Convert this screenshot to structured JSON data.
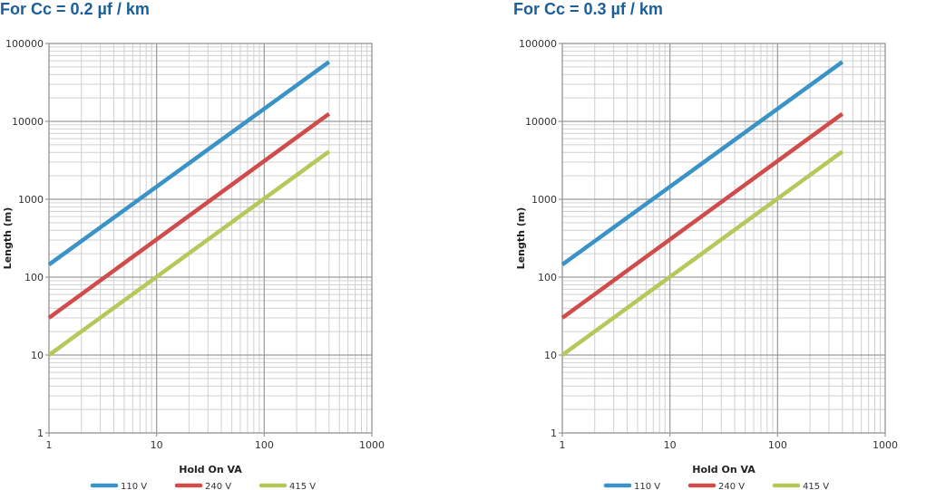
{
  "colors": {
    "title": "#1b5e9a",
    "grid_minor": "#d0d0d0",
    "grid_major": "#9a9a9a"
  },
  "chart_data": [
    {
      "type": "line",
      "title": "For Cc = 0.2 µf / km",
      "xlabel": "Hold On VA",
      "ylabel": "Length (m)",
      "xscale": "log",
      "yscale": "log",
      "xlim": [
        1,
        1000
      ],
      "ylim": [
        1,
        100000
      ],
      "xticks": [
        "1",
        "10",
        "100",
        "1000"
      ],
      "yticks": [
        "1",
        "10",
        "100",
        "1000",
        "10000",
        "100000"
      ],
      "grid": true,
      "legend_position": "bottom",
      "series": [
        {
          "name": "110 V",
          "color": "#3a93c6",
          "x": [
            1,
            400
          ],
          "y": [
            145,
            58000
          ]
        },
        {
          "name": "240 V",
          "color": "#d04c4c",
          "x": [
            1,
            400
          ],
          "y": [
            30,
            12500
          ]
        },
        {
          "name": "415 V",
          "color": "#b5c95a",
          "x": [
            1,
            400
          ],
          "y": [
            10,
            4100
          ]
        }
      ]
    },
    {
      "type": "line",
      "title": "For Cc = 0.3 µf / km",
      "xlabel": "Hold On VA",
      "ylabel": "Length (m)",
      "xscale": "log",
      "yscale": "log",
      "xlim": [
        1,
        1000
      ],
      "ylim": [
        1,
        100000
      ],
      "xticks": [
        "1",
        "10",
        "100",
        "1000"
      ],
      "yticks": [
        "1",
        "10",
        "100",
        "1000",
        "10000",
        "100000"
      ],
      "grid": true,
      "legend_position": "bottom",
      "series": [
        {
          "name": "110 V",
          "color": "#3a93c6",
          "x": [
            1,
            400
          ],
          "y": [
            145,
            58000
          ]
        },
        {
          "name": "240 V",
          "color": "#d04c4c",
          "x": [
            1,
            400
          ],
          "y": [
            30,
            12500
          ]
        },
        {
          "name": "415 V",
          "color": "#b5c95a",
          "x": [
            1,
            400
          ],
          "y": [
            10,
            4100
          ]
        }
      ]
    }
  ]
}
